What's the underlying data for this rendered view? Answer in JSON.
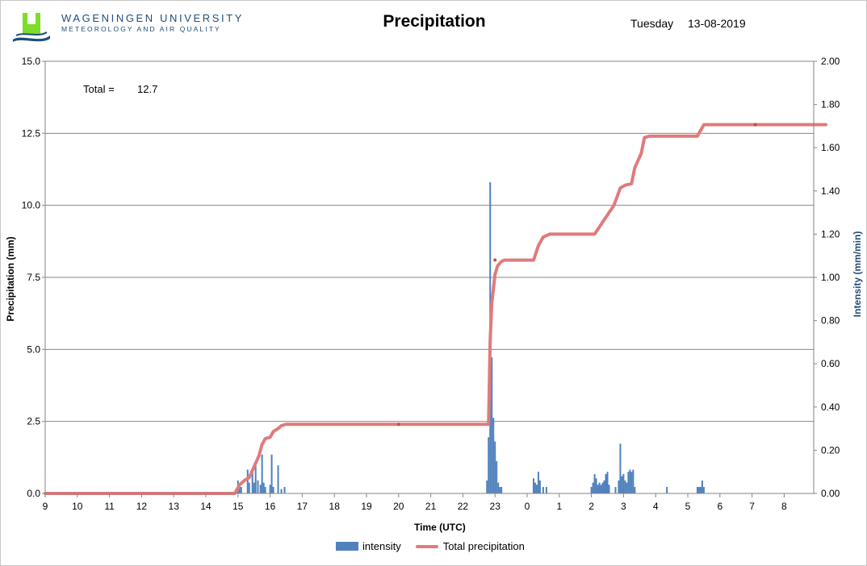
{
  "header": {
    "org_name": "WAGENINGEN UNIVERSITY",
    "org_dept": "METEOROLOGY AND AIR QUALITY",
    "title": "Precipitation",
    "weekday": "Tuesday",
    "date": "13-08-2019"
  },
  "colors": {
    "bar": "#4f81bd",
    "line": "#e07b7b",
    "marker": "#c0504d",
    "grid": "#868686",
    "axis": "#868686",
    "right_axis_label": "#1f4e79",
    "logo_green": "#7cdd2a",
    "logo_dark": "#1f4e79"
  },
  "chart_data": {
    "type": "bar+line",
    "title": "Precipitation",
    "annotation": {
      "label": "Total =",
      "value": "12.7"
    },
    "xlabel": "Time (UTC)",
    "ylabel_left": "Precipitation (mm)",
    "ylabel_right": "Intensity (mm/min)",
    "ylim_left": [
      0,
      15
    ],
    "ylim_right": [
      0,
      2
    ],
    "yticks_left": [
      "0.0",
      "2.5",
      "5.0",
      "7.5",
      "10.0",
      "12.5",
      "15.0"
    ],
    "yticks_right": [
      "0.00",
      "0.20",
      "0.40",
      "0.60",
      "0.80",
      "1.00",
      "1.20",
      "1.40",
      "1.60",
      "1.80",
      "2.00"
    ],
    "x_tick_labels": [
      "9",
      "10",
      "11",
      "12",
      "13",
      "14",
      "15",
      "16",
      "17",
      "18",
      "19",
      "20",
      "21",
      "22",
      "23",
      "0",
      "1",
      "2",
      "3",
      "4",
      "5",
      "6",
      "7",
      "8"
    ],
    "x_range_hours": [
      9,
      33.75
    ],
    "legend": [
      "intensity",
      "Total precipitation"
    ],
    "series": [
      {
        "name": "intensity",
        "axis": "right",
        "type": "bar",
        "points": [
          [
            15.0,
            0.06
          ],
          [
            15.05,
            0.04
          ],
          [
            15.1,
            0.03
          ],
          [
            15.3,
            0.11
          ],
          [
            15.35,
            0.05
          ],
          [
            15.45,
            0.1
          ],
          [
            15.5,
            0.05
          ],
          [
            15.55,
            0.13
          ],
          [
            15.62,
            0.06
          ],
          [
            15.7,
            0.04
          ],
          [
            15.75,
            0.18
          ],
          [
            15.8,
            0.05
          ],
          [
            15.85,
            0.03
          ],
          [
            16.0,
            0.04
          ],
          [
            16.05,
            0.18
          ],
          [
            16.1,
            0.03
          ],
          [
            16.25,
            0.13
          ],
          [
            16.35,
            0.02
          ],
          [
            16.45,
            0.03
          ],
          [
            22.75,
            0.06
          ],
          [
            22.8,
            0.26
          ],
          [
            22.85,
            1.44
          ],
          [
            22.9,
            0.63
          ],
          [
            22.95,
            0.35
          ],
          [
            23.0,
            0.24
          ],
          [
            23.05,
            0.15
          ],
          [
            23.1,
            0.05
          ],
          [
            23.15,
            0.03
          ],
          [
            23.2,
            0.03
          ],
          [
            24.2,
            0.07
          ],
          [
            24.25,
            0.05
          ],
          [
            24.3,
            0.04
          ],
          [
            24.35,
            0.1
          ],
          [
            24.4,
            0.06
          ],
          [
            24.5,
            0.03
          ],
          [
            24.6,
            0.03
          ],
          [
            26.0,
            0.03
          ],
          [
            26.05,
            0.05
          ],
          [
            26.1,
            0.09
          ],
          [
            26.15,
            0.07
          ],
          [
            26.2,
            0.04
          ],
          [
            26.25,
            0.05
          ],
          [
            26.3,
            0.04
          ],
          [
            26.35,
            0.05
          ],
          [
            26.4,
            0.06
          ],
          [
            26.45,
            0.09
          ],
          [
            26.5,
            0.1
          ],
          [
            26.55,
            0.04
          ],
          [
            26.75,
            0.03
          ],
          [
            26.85,
            0.06
          ],
          [
            26.9,
            0.23
          ],
          [
            26.95,
            0.08
          ],
          [
            27.0,
            0.09
          ],
          [
            27.05,
            0.06
          ],
          [
            27.1,
            0.05
          ],
          [
            27.15,
            0.1
          ],
          [
            27.2,
            0.11
          ],
          [
            27.25,
            0.1
          ],
          [
            27.3,
            0.11
          ],
          [
            27.35,
            0.03
          ],
          [
            28.35,
            0.03
          ],
          [
            29.3,
            0.03
          ],
          [
            29.35,
            0.03
          ],
          [
            29.4,
            0.03
          ],
          [
            29.45,
            0.06
          ],
          [
            29.5,
            0.03
          ]
        ]
      },
      {
        "name": "Total precipitation",
        "axis": "left",
        "type": "line",
        "points": [
          [
            9.0,
            0.0
          ],
          [
            14.9,
            0.0
          ],
          [
            15.05,
            0.3
          ],
          [
            15.2,
            0.45
          ],
          [
            15.35,
            0.55
          ],
          [
            15.45,
            0.8
          ],
          [
            15.55,
            1.05
          ],
          [
            15.65,
            1.3
          ],
          [
            15.75,
            1.7
          ],
          [
            15.85,
            1.9
          ],
          [
            16.0,
            1.95
          ],
          [
            16.1,
            2.15
          ],
          [
            16.25,
            2.25
          ],
          [
            16.35,
            2.35
          ],
          [
            16.5,
            2.4
          ],
          [
            22.8,
            2.4
          ],
          [
            22.85,
            5.3
          ],
          [
            22.9,
            6.6
          ],
          [
            23.0,
            7.6
          ],
          [
            23.08,
            7.9
          ],
          [
            23.2,
            8.05
          ],
          [
            23.3,
            8.1
          ],
          [
            24.2,
            8.1
          ],
          [
            24.35,
            8.6
          ],
          [
            24.5,
            8.9
          ],
          [
            24.7,
            9.0
          ],
          [
            26.1,
            9.0
          ],
          [
            26.4,
            9.5
          ],
          [
            26.7,
            10.0
          ],
          [
            26.9,
            10.6
          ],
          [
            27.05,
            10.7
          ],
          [
            27.25,
            10.75
          ],
          [
            27.35,
            11.3
          ],
          [
            27.55,
            11.8
          ],
          [
            27.65,
            12.35
          ],
          [
            27.8,
            12.4
          ],
          [
            29.3,
            12.4
          ],
          [
            29.5,
            12.8
          ],
          [
            33.3,
            12.8
          ]
        ],
        "markers": [
          [
            20.0,
            2.4
          ],
          [
            23.0,
            8.1
          ],
          [
            31.1,
            12.8
          ]
        ]
      }
    ]
  }
}
